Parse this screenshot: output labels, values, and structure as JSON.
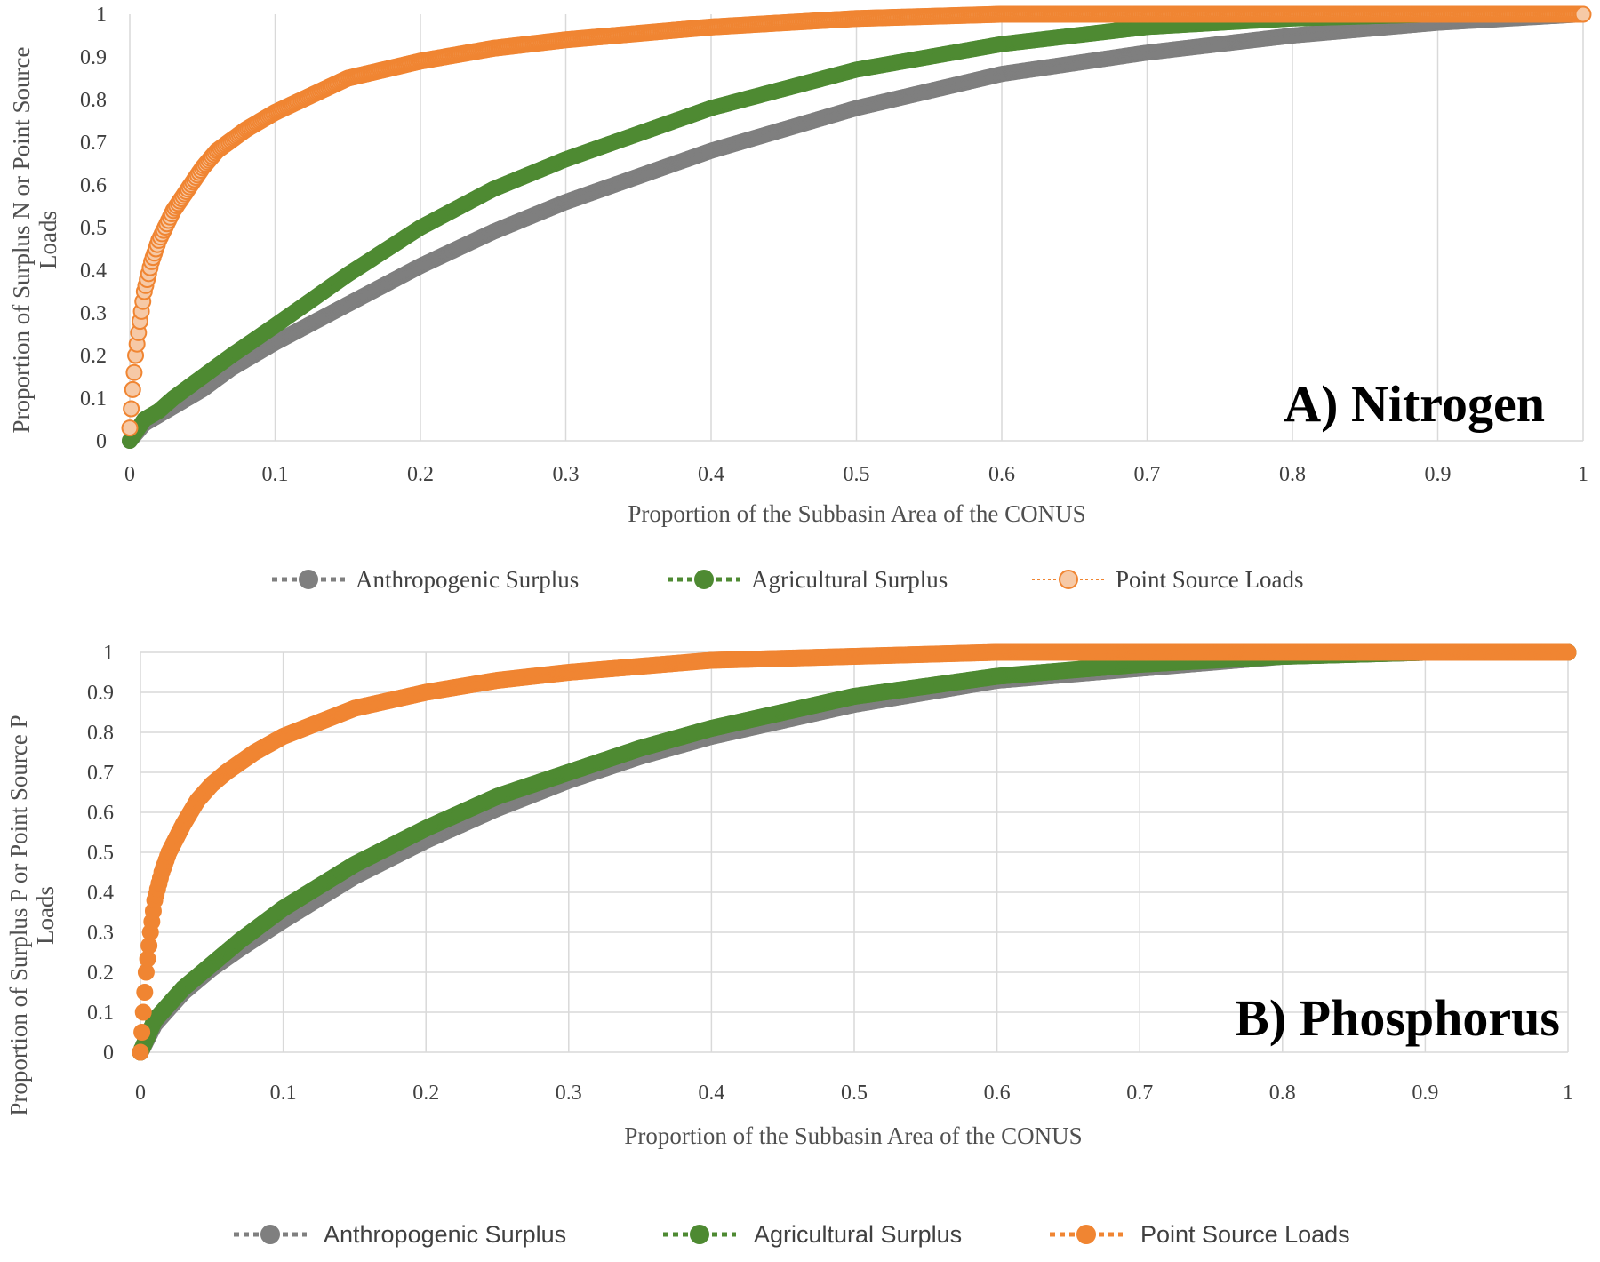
{
  "colors": {
    "anthropogenic": "#7f7f7f",
    "agricultural": "#4e8a32",
    "point_source": "#f08532"
  },
  "chart_data": [
    {
      "type": "scatter",
      "panel_label": "A) Nitrogen",
      "xlabel": "Proportion of the Subbasin Area of the CONUS",
      "ylabel": [
        "Proportion of Surplus N or Point Source",
        "Loads"
      ],
      "xlim": [
        0,
        1
      ],
      "ylim": [
        0,
        1
      ],
      "x_ticks": [
        "0",
        "0.1",
        "0.2",
        "0.3",
        "0.4",
        "0.5",
        "0.6",
        "0.7",
        "0.8",
        "0.9",
        "1"
      ],
      "y_ticks": [
        "0",
        "0.1",
        "0.2",
        "0.3",
        "0.4",
        "0.5",
        "0.6",
        "0.7",
        "0.8",
        "0.9",
        "1"
      ],
      "grid": "vertical",
      "legend_position": "bottom",
      "series": [
        {
          "name": "Anthropogenic Surplus",
          "color_key": "anthropogenic",
          "x": [
            0,
            0.01,
            0.02,
            0.03,
            0.05,
            0.07,
            0.1,
            0.15,
            0.2,
            0.25,
            0.3,
            0.35,
            0.4,
            0.5,
            0.6,
            0.7,
            0.8,
            0.9,
            1
          ],
          "y": [
            0,
            0.04,
            0.06,
            0.08,
            0.12,
            0.17,
            0.23,
            0.32,
            0.41,
            0.49,
            0.56,
            0.62,
            0.68,
            0.78,
            0.86,
            0.91,
            0.95,
            0.98,
            1
          ]
        },
        {
          "name": "Agricultural Surplus",
          "color_key": "agricultural",
          "x": [
            0,
            0.01,
            0.02,
            0.03,
            0.05,
            0.07,
            0.1,
            0.15,
            0.2,
            0.25,
            0.3,
            0.35,
            0.4,
            0.5,
            0.6,
            0.7,
            0.8,
            0.9,
            1
          ],
          "y": [
            0,
            0.05,
            0.07,
            0.1,
            0.15,
            0.2,
            0.27,
            0.39,
            0.5,
            0.59,
            0.66,
            0.72,
            0.78,
            0.87,
            0.93,
            0.97,
            0.99,
            1,
            1
          ]
        },
        {
          "name": "Point Source Loads",
          "color_key": "point_source",
          "x": [
            0,
            0.002,
            0.004,
            0.007,
            0.01,
            0.015,
            0.02,
            0.03,
            0.04,
            0.05,
            0.06,
            0.08,
            0.1,
            0.15,
            0.2,
            0.25,
            0.3,
            0.4,
            0.5,
            0.6,
            0.7,
            0.8,
            1
          ],
          "y": [
            0.03,
            0.12,
            0.2,
            0.28,
            0.35,
            0.42,
            0.47,
            0.54,
            0.59,
            0.64,
            0.68,
            0.73,
            0.77,
            0.85,
            0.89,
            0.92,
            0.94,
            0.97,
            0.99,
            1,
            1,
            1,
            1
          ]
        }
      ]
    },
    {
      "type": "scatter",
      "panel_label": "B) Phosphorus",
      "xlabel": "Proportion of the Subbasin Area of the CONUS",
      "ylabel": [
        "Proportion of Surplus P or Point Source P",
        "Loads"
      ],
      "xlim": [
        0,
        1
      ],
      "ylim": [
        0,
        1
      ],
      "x_ticks": [
        "0",
        "0.1",
        "0.2",
        "0.3",
        "0.4",
        "0.5",
        "0.6",
        "0.7",
        "0.8",
        "0.9",
        "1"
      ],
      "y_ticks": [
        "0",
        "0.1",
        "0.2",
        "0.3",
        "0.4",
        "0.5",
        "0.6",
        "0.7",
        "0.8",
        "0.9",
        "1"
      ],
      "grid": "both",
      "legend_position": "bottom",
      "series": [
        {
          "name": "Anthropogenic Surplus",
          "color_key": "anthropogenic",
          "x": [
            0,
            0.01,
            0.02,
            0.03,
            0.05,
            0.07,
            0.1,
            0.15,
            0.2,
            0.25,
            0.3,
            0.35,
            0.4,
            0.5,
            0.6,
            0.7,
            0.8,
            0.9,
            1
          ],
          "y": [
            0,
            0.07,
            0.11,
            0.15,
            0.21,
            0.26,
            0.33,
            0.44,
            0.53,
            0.61,
            0.68,
            0.74,
            0.79,
            0.87,
            0.93,
            0.96,
            0.99,
            1,
            1
          ]
        },
        {
          "name": "Agricultural Surplus",
          "color_key": "agricultural",
          "x": [
            0,
            0.01,
            0.02,
            0.03,
            0.05,
            0.07,
            0.1,
            0.15,
            0.2,
            0.25,
            0.3,
            0.35,
            0.4,
            0.5,
            0.6,
            0.7,
            0.8,
            0.9,
            1
          ],
          "y": [
            0,
            0.08,
            0.12,
            0.16,
            0.22,
            0.28,
            0.36,
            0.47,
            0.56,
            0.64,
            0.7,
            0.76,
            0.81,
            0.89,
            0.94,
            0.97,
            0.99,
            1,
            1
          ]
        },
        {
          "name": "Point Source Loads",
          "color_key": "point_source",
          "x": [
            0,
            0.002,
            0.004,
            0.007,
            0.01,
            0.015,
            0.02,
            0.03,
            0.04,
            0.05,
            0.06,
            0.08,
            0.1,
            0.15,
            0.2,
            0.25,
            0.3,
            0.4,
            0.5,
            0.6,
            0.7,
            0.8,
            1
          ],
          "y": [
            0,
            0.1,
            0.2,
            0.3,
            0.38,
            0.45,
            0.5,
            0.57,
            0.63,
            0.67,
            0.7,
            0.75,
            0.79,
            0.86,
            0.9,
            0.93,
            0.95,
            0.98,
            0.99,
            1,
            1,
            1,
            1
          ]
        }
      ]
    }
  ]
}
